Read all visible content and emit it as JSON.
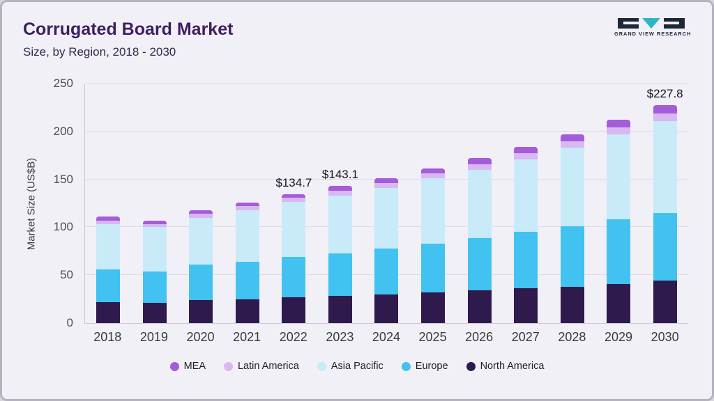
{
  "header": {
    "title": "Corrugated Board Market",
    "subtitle": "Size, by Region, 2018 - 2030"
  },
  "logo": {
    "text": "GRAND VIEW RESEARCH",
    "dark_color": "#1c2836",
    "teal_color": "#2fb5c8"
  },
  "chart_data": {
    "type": "bar",
    "stacked": true,
    "title": "Corrugated Board Market Size, by Region, 2018 - 2030",
    "xlabel": "",
    "ylabel": "Market Size (US$B)",
    "ylim": [
      0,
      250
    ],
    "yticks": [
      0,
      50,
      100,
      150,
      200,
      250
    ],
    "grid": "horizontal",
    "legend_position": "bottom",
    "categories": [
      "2018",
      "2019",
      "2020",
      "2021",
      "2022",
      "2023",
      "2024",
      "2025",
      "2026",
      "2027",
      "2028",
      "2029",
      "2030"
    ],
    "series": [
      {
        "name": "North America",
        "color": "#2e1a4d",
        "values": [
          22,
          21,
          24,
          25,
          27,
          28,
          30,
          32,
          34,
          36,
          38,
          41,
          44
        ]
      },
      {
        "name": "Europe",
        "color": "#42c2f0",
        "values": [
          34,
          33,
          37,
          39,
          42,
          45,
          48,
          51,
          55,
          59,
          63,
          67,
          71
        ]
      },
      {
        "name": "Asia Pacific",
        "color": "#c9eaf9",
        "values": [
          47,
          46,
          49,
          54,
          57.7,
          60.1,
          63,
          68,
          71,
          76,
          82,
          89,
          96
        ]
      },
      {
        "name": "Latin America",
        "color": "#d9b8f1",
        "values": [
          4,
          3.5,
          4,
          4,
          4,
          5,
          5,
          5,
          6,
          6.5,
          7,
          7.5,
          8
        ]
      },
      {
        "name": "MEA",
        "color": "#a55cd9",
        "values": [
          4,
          3.5,
          4,
          4,
          4,
          5,
          5,
          5,
          6,
          6.5,
          7,
          7.5,
          8.8
        ]
      }
    ],
    "totals_labeled": {
      "2022": "$134.7",
      "2023": "$143.1",
      "2030": "$227.8"
    },
    "legend": [
      {
        "label": "MEA",
        "color": "#a55cd9"
      },
      {
        "label": "Latin America",
        "color": "#d9b8f1"
      },
      {
        "label": "Asia Pacific",
        "color": "#c9eaf9"
      },
      {
        "label": "Europe",
        "color": "#42c2f0"
      },
      {
        "label": "North America",
        "color": "#2e1a4d"
      }
    ]
  }
}
